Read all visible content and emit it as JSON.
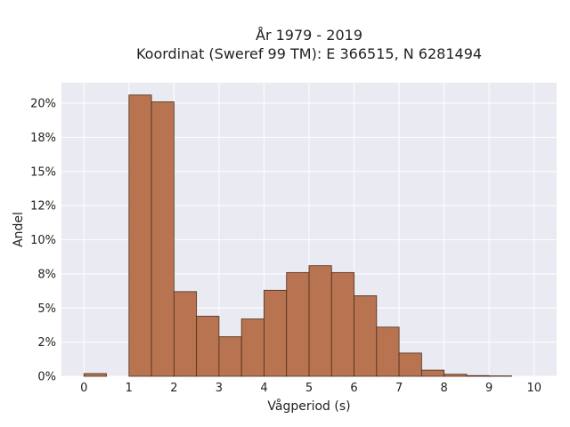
{
  "chart_data": {
    "type": "bar",
    "title_line1": "År 1979 - 2019",
    "title_line2": "Koordinat (Sweref 99 TM): E 366515, N 6281494",
    "xlabel": "Vågperiod (s)",
    "ylabel": "Andel",
    "bin_width": 0.5,
    "bins": [
      {
        "x0": 0.0,
        "x1": 0.5,
        "value": 0.2
      },
      {
        "x0": 1.0,
        "x1": 1.5,
        "value": 20.6
      },
      {
        "x0": 1.5,
        "x1": 2.0,
        "value": 20.1
      },
      {
        "x0": 2.0,
        "x1": 2.5,
        "value": 6.2
      },
      {
        "x0": 2.5,
        "x1": 3.0,
        "value": 4.4
      },
      {
        "x0": 3.0,
        "x1": 3.5,
        "value": 2.9
      },
      {
        "x0": 3.5,
        "x1": 4.0,
        "value": 4.2
      },
      {
        "x0": 4.0,
        "x1": 4.5,
        "value": 6.3
      },
      {
        "x0": 4.5,
        "x1": 5.0,
        "value": 7.6
      },
      {
        "x0": 5.0,
        "x1": 5.5,
        "value": 8.1
      },
      {
        "x0": 5.5,
        "x1": 6.0,
        "value": 7.6
      },
      {
        "x0": 6.0,
        "x1": 6.5,
        "value": 5.9
      },
      {
        "x0": 6.5,
        "x1": 7.0,
        "value": 3.6
      },
      {
        "x0": 7.0,
        "x1": 7.5,
        "value": 1.7
      },
      {
        "x0": 7.5,
        "x1": 8.0,
        "value": 0.45
      },
      {
        "x0": 8.0,
        "x1": 8.5,
        "value": 0.15
      },
      {
        "x0": 8.5,
        "x1": 9.0,
        "value": 0.05
      },
      {
        "x0": 9.0,
        "x1": 9.5,
        "value": 0.03
      }
    ],
    "xlim": [
      -0.5,
      10.5
    ],
    "ylim": [
      0,
      21.5
    ],
    "xticks": [
      0,
      1,
      2,
      3,
      4,
      5,
      6,
      7,
      8,
      9,
      10
    ],
    "xtick_labels": [
      "0",
      "1",
      "2",
      "3",
      "4",
      "5",
      "6",
      "7",
      "8",
      "9",
      "10"
    ],
    "yticks": [
      0,
      2.5,
      5,
      7.5,
      10,
      12.5,
      15,
      17.5,
      20
    ],
    "ytick_labels": [
      "0%",
      "2%",
      "5%",
      "8%",
      "10%",
      "12%",
      "15%",
      "18%",
      "20%"
    ],
    "grid": true,
    "colors": {
      "bar_fill": "#b87450",
      "bar_edge": "#4a2e1e",
      "plot_bg": "#eaeaf2",
      "grid": "#ffffff"
    }
  }
}
